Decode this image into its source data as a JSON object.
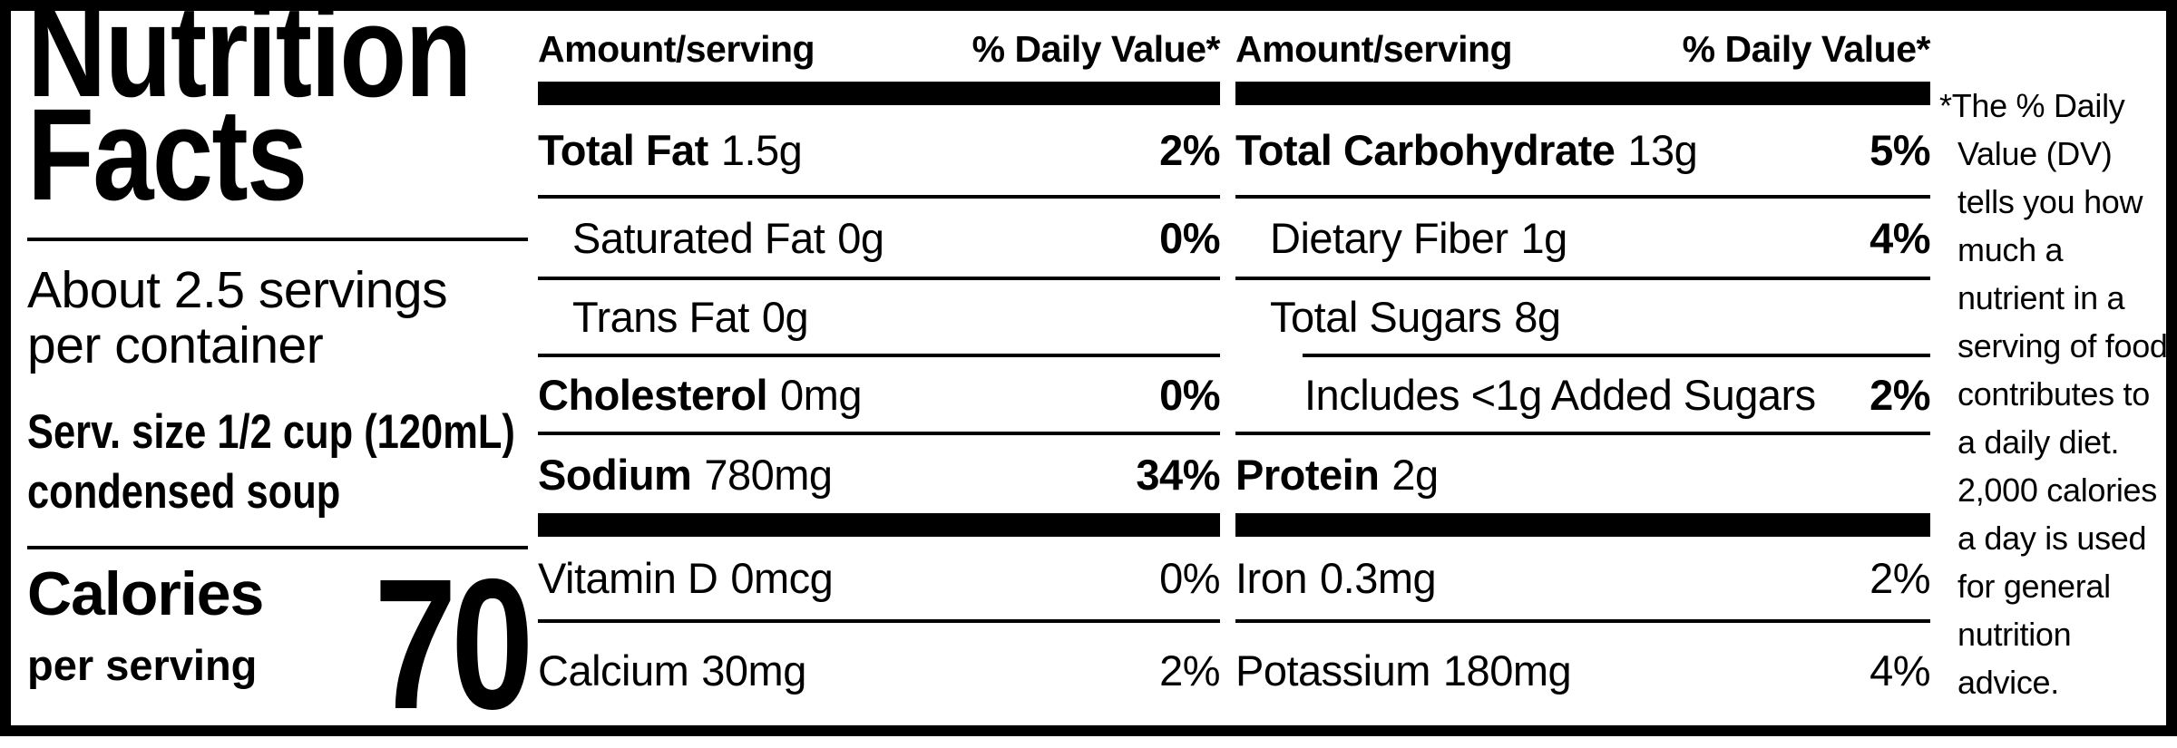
{
  "label": {
    "title_line1": "Nutrition",
    "title_line2": "Facts",
    "servings_line1": "About 2.5 servings",
    "servings_line2": "per container",
    "serving_size_line1": "Serv. size 1/2 cup (120mL)",
    "serving_size_line2": "condensed soup",
    "calories_label": "Calories",
    "calories_sublabel": "per serving",
    "calories_value": "70",
    "footnote": "*The % Daily Value (DV) tells you how much a nutrient in a serving of food contributes to a daily diet. 2,000 calories a day is used for general nutrition advice.",
    "colors": {
      "ink": "#000000",
      "paper": "#ffffff"
    }
  },
  "table_header": {
    "amount": "Amount/serving",
    "daily_value": "% Daily Value*"
  },
  "tables": [
    {
      "rows": [
        {
          "name": "Total Fat",
          "amount": "1.5g",
          "dv": "2%"
        },
        {
          "name": "Saturated Fat",
          "amount": "0g",
          "dv": "0%"
        },
        {
          "name": "Trans Fat",
          "amount": "0g",
          "dv": ""
        },
        {
          "name": "Cholesterol",
          "amount": "0mg",
          "dv": "0%"
        },
        {
          "name": "Sodium",
          "amount": "780mg",
          "dv": "34%"
        },
        {
          "name": "Vitamin D",
          "amount": "0mcg",
          "dv": "0%"
        },
        {
          "name": "Calcium",
          "amount": "30mg",
          "dv": "2%"
        }
      ]
    },
    {
      "rows": [
        {
          "name": "Total Carbohydrate",
          "amount": "13g",
          "dv": "5%"
        },
        {
          "name": "Dietary Fiber",
          "amount": "1g",
          "dv": "4%"
        },
        {
          "name": "Total Sugars",
          "amount": "8g",
          "dv": ""
        },
        {
          "name": "Includes <1g Added Sugars",
          "amount": "",
          "dv": "2%"
        },
        {
          "name": "Protein",
          "amount": "2g",
          "dv": ""
        },
        {
          "name": "Iron",
          "amount": "0.3mg",
          "dv": "2%"
        },
        {
          "name": "Potassium",
          "amount": "180mg",
          "dv": "4%"
        }
      ]
    }
  ]
}
